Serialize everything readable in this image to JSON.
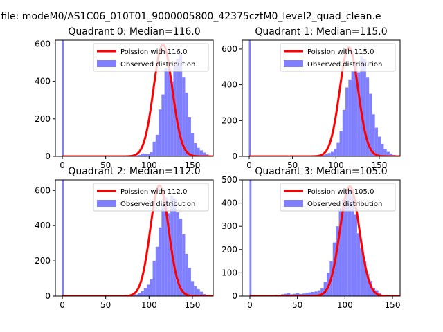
{
  "figure": {
    "suptitle": "n file: modeM0/AS1C06_010T01_9000005800_42375cztM0_level2_quad_clean.e"
  },
  "colors": {
    "hist": "#8080ff",
    "poisson": "#ff0000",
    "axes": "#000000"
  },
  "chart_data": [
    {
      "type": "bar",
      "title": "Quadrant 0: Median=116.0",
      "legend": [
        "Poission with 116.0",
        "Observed distribution"
      ],
      "legend_position": "upper-right",
      "xlim": [
        -8,
        174
      ],
      "ylim": [
        0,
        620
      ],
      "xticks": [
        0,
        50,
        100,
        150
      ],
      "xtick_labels": [
        "0",
        "50",
        "100",
        "150"
      ],
      "yticks": [
        0,
        200,
        400,
        600
      ],
      "ytick_labels": [
        "0",
        "200",
        "400",
        "600"
      ],
      "spike": {
        "x": 0,
        "value": 620
      },
      "bins_start": 60,
      "bin_width": 3.4,
      "values": [
        0,
        2,
        0,
        2,
        1,
        4,
        3,
        5,
        8,
        15,
        14,
        12,
        22,
        78,
        115,
        250,
        330,
        470,
        485,
        400,
        480,
        520,
        545,
        420,
        340,
        210,
        125,
        70,
        45,
        32,
        20,
        10,
        5,
        3,
        1
      ],
      "poisson_mean": 116.0,
      "poisson_peak": 597,
      "poisson_sigma": 10.8
    },
    {
      "type": "bar",
      "title": "Quadrant 1: Median=115.0",
      "legend": [
        "Poission with 115.0",
        "Observed distribution"
      ],
      "legend_position": "upper-right",
      "xlim": [
        -8,
        174
      ],
      "ylim": [
        0,
        650
      ],
      "xticks": [
        0,
        50,
        100,
        150
      ],
      "xtick_labels": [
        "0",
        "50",
        "100",
        "150"
      ],
      "yticks": [
        0,
        200,
        400,
        600
      ],
      "ytick_labels": [
        "0",
        "200",
        "400",
        "600"
      ],
      "spike": {
        "x": 0,
        "value": 650
      },
      "bins_start": 60,
      "bin_width": 3.4,
      "values": [
        0,
        1,
        1,
        2,
        3,
        5,
        6,
        8,
        12,
        18,
        25,
        40,
        75,
        140,
        260,
        385,
        430,
        480,
        520,
        470,
        560,
        545,
        440,
        350,
        235,
        160,
        110,
        70,
        40,
        25,
        15,
        8,
        4,
        2,
        1
      ],
      "poisson_mean": 115.0,
      "poisson_peak": 610,
      "poisson_sigma": 10.7
    },
    {
      "type": "bar",
      "title": "Quadrant 2: Median=112.0",
      "legend": [
        "Poission with 112.0",
        "Observed distribution"
      ],
      "legend_position": "upper-right",
      "xlim": [
        -8,
        174
      ],
      "ylim": [
        0,
        660
      ],
      "xticks": [
        0,
        50,
        100,
        150
      ],
      "xtick_labels": [
        "0",
        "50",
        "100",
        "150"
      ],
      "yticks": [
        0,
        200,
        400,
        600
      ],
      "ytick_labels": [
        "0",
        "200",
        "400",
        "600"
      ],
      "spike": {
        "x": 0,
        "value": 660
      },
      "bins_start": 60,
      "bin_width": 3.4,
      "values": [
        0,
        1,
        0,
        2,
        3,
        4,
        6,
        10,
        16,
        28,
        45,
        65,
        95,
        200,
        280,
        390,
        520,
        560,
        470,
        570,
        555,
        475,
        440,
        350,
        240,
        160,
        85,
        55,
        40,
        25,
        12,
        6,
        3,
        1,
        0
      ],
      "poisson_mean": 112.0,
      "poisson_peak": 628,
      "poisson_sigma": 10.6
    },
    {
      "type": "bar",
      "title": "Quadrant 3: Median=105.0",
      "legend": [
        "Poission with 105.0",
        "Observed distribution"
      ],
      "legend_position": "upper-right",
      "xlim": [
        -8,
        158
      ],
      "ylim": [
        0,
        500
      ],
      "xticks": [
        0,
        50,
        100,
        150
      ],
      "xtick_labels": [
        "0",
        "50",
        "100",
        "150"
      ],
      "yticks": [
        0,
        100,
        200,
        300,
        400,
        500
      ],
      "ytick_labels": [
        "0",
        "100",
        "200",
        "300",
        "400",
        "500"
      ],
      "spike": {
        "x": 0,
        "value": 500
      },
      "bins_start": 20,
      "bin_width": 3.2,
      "values": [
        2,
        3,
        5,
        4,
        8,
        10,
        12,
        8,
        10,
        12,
        9,
        11,
        14,
        16,
        18,
        20,
        25,
        35,
        60,
        100,
        150,
        230,
        300,
        380,
        420,
        460,
        455,
        430,
        350,
        270,
        205,
        150,
        95,
        65,
        35,
        25,
        12,
        5
      ],
      "poisson_mean": 105.0,
      "poisson_peak": 472,
      "poisson_sigma": 10.2
    }
  ]
}
